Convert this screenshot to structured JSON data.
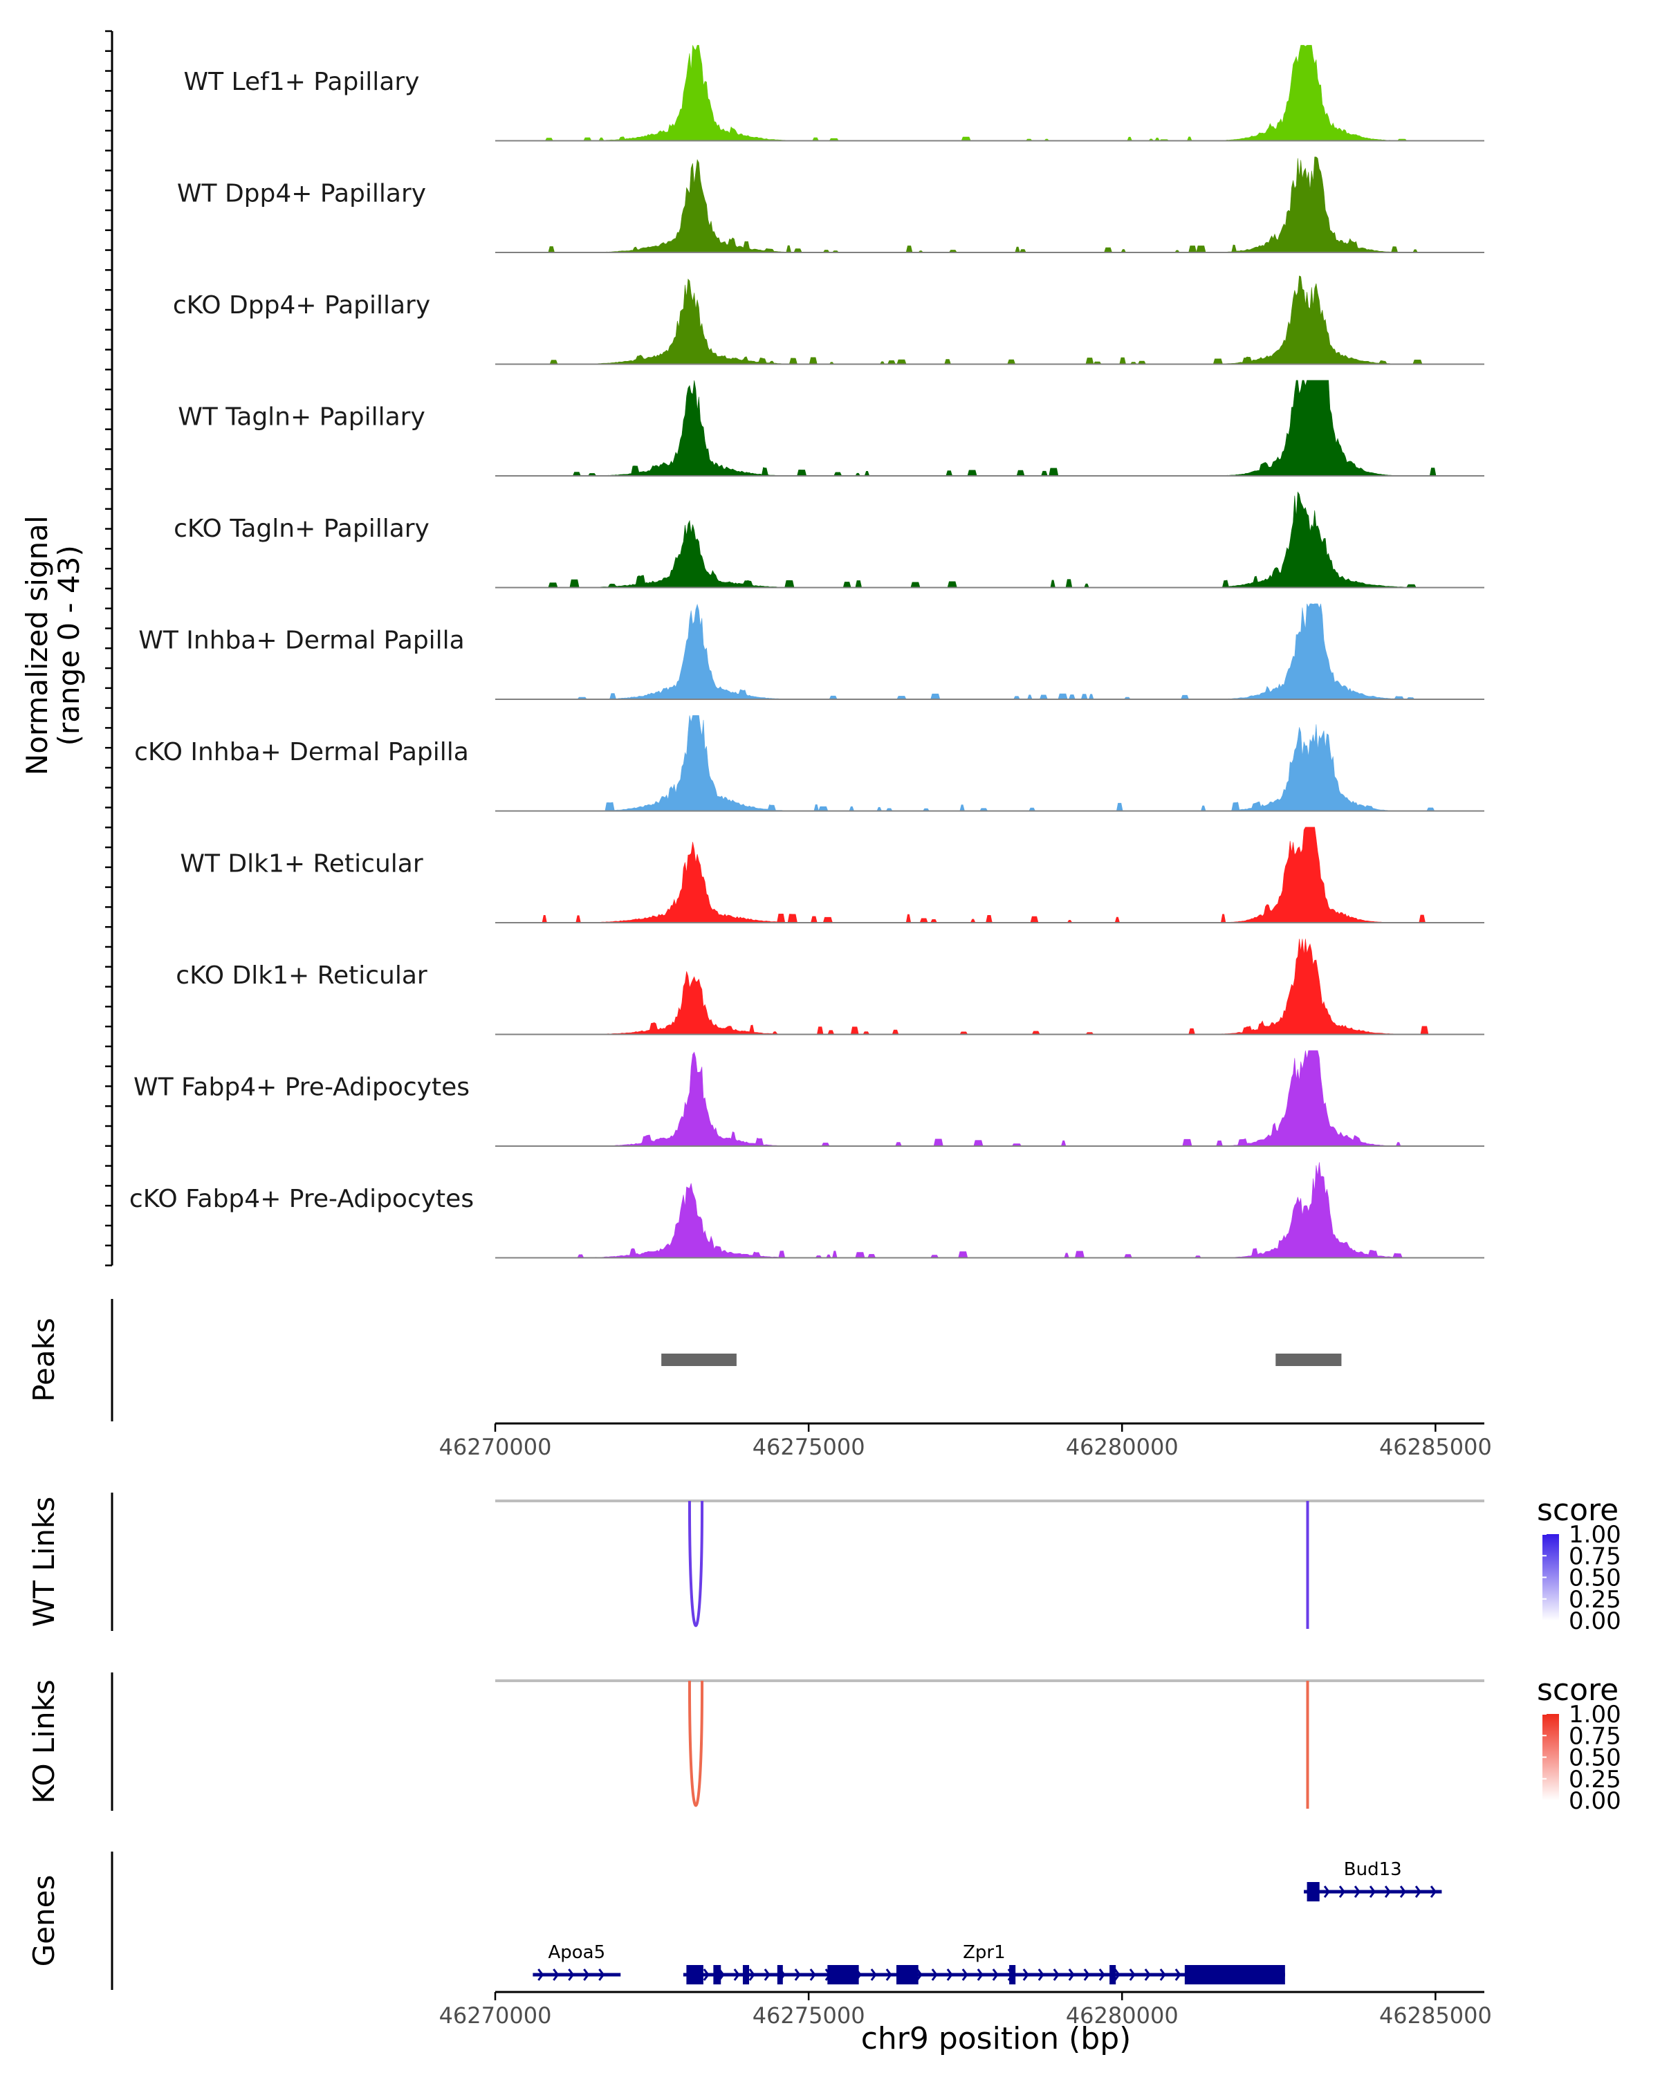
{
  "chart_data": {
    "type": "coverage",
    "xlabel": "chr9 position (bp)",
    "xlim": [
      46270000,
      46286000
    ],
    "x_ticks": [
      46270000,
      46275000,
      46280000,
      46285000
    ],
    "x_tick_labels": [
      "46270000",
      "46275000",
      "46280000",
      "46285000"
    ],
    "coverage": {
      "ylabel": "Normalized signal",
      "ylabel_range": "(range 0 - 43)",
      "ylim": [
        0,
        43
      ],
      "tracks": [
        {
          "name": "WT Lef1+ Papillary",
          "color": "#66CC00",
          "peaks": [
            [
              46273200,
              40,
              140
            ],
            [
              46282800,
              25,
              110
            ],
            [
              46283000,
              40,
              120
            ]
          ],
          "noise": 1.5
        },
        {
          "name": "WT Dpp4+ Papillary",
          "color": "#4C8C00",
          "peaks": [
            [
              46273200,
              36,
              140
            ],
            [
              46282800,
              30,
              110
            ],
            [
              46283100,
              32,
              120
            ]
          ],
          "noise": 2.5
        },
        {
          "name": "cKO Dpp4+ Papillary",
          "color": "#4C8C00",
          "peaks": [
            [
              46273100,
              32,
              150
            ],
            [
              46282800,
              28,
              110
            ],
            [
              46283100,
              26,
              120
            ]
          ],
          "noise": 2.5
        },
        {
          "name": "WT Tagln+ Papillary",
          "color": "#006400",
          "peaks": [
            [
              46273150,
              38,
              130
            ],
            [
              46282800,
              30,
              110
            ],
            [
              46283050,
              40,
              100
            ],
            [
              46283250,
              30,
              100
            ]
          ],
          "noise": 3.0
        },
        {
          "name": "cKO Tagln+ Papillary",
          "color": "#006400",
          "peaks": [
            [
              46273100,
              26,
              150
            ],
            [
              46282800,
              32,
              110
            ],
            [
              46283100,
              22,
              150
            ]
          ],
          "noise": 3.0
        },
        {
          "name": "WT Inhba+ Dermal Papilla",
          "color": "#5BA8E6",
          "peaks": [
            [
              46273200,
              38,
              130
            ],
            [
              46282850,
              22,
              110
            ],
            [
              46283100,
              42,
              120
            ]
          ],
          "noise": 2.0
        },
        {
          "name": "cKO Inhba+ Dermal Papilla",
          "color": "#5BA8E6",
          "peaks": [
            [
              46273200,
              50,
              130
            ],
            [
              46282800,
              26,
              110
            ],
            [
              46283100,
              25,
              110
            ],
            [
              46283300,
              18,
              90
            ]
          ],
          "noise": 3.0
        },
        {
          "name": "WT Dlk1+ Reticular",
          "color": "#FF2020",
          "peaks": [
            [
              46273150,
              30,
              150
            ],
            [
              46282700,
              28,
              90
            ],
            [
              46283000,
              44,
              110
            ]
          ],
          "noise": 3.0
        },
        {
          "name": "cKO Dlk1+ Reticular",
          "color": "#FF2020",
          "peaks": [
            [
              46273150,
              26,
              140
            ],
            [
              46282800,
              22,
              110
            ],
            [
              46283000,
              30,
              130
            ]
          ],
          "noise": 3.0
        },
        {
          "name": "WT Fabp4+ Pre-Adipocytes",
          "color": "#B23AEE",
          "peaks": [
            [
              46273200,
              36,
              130
            ],
            [
              46282750,
              24,
              100
            ],
            [
              46283050,
              50,
              110
            ]
          ],
          "noise": 3.0
        },
        {
          "name": "cKO Fabp4+ Pre-Adipocytes",
          "color": "#B23AEE",
          "peaks": [
            [
              46273100,
              28,
              150
            ],
            [
              46282800,
              18,
              100
            ],
            [
              46283150,
              38,
              120
            ]
          ],
          "noise": 2.5
        }
      ]
    },
    "peaks": {
      "label": "Peaks",
      "color": "#666666",
      "regions": [
        [
          46272650,
          46273850
        ],
        [
          46282450,
          46283500
        ]
      ]
    },
    "links": [
      {
        "label": "WT Links",
        "color": "#6A3DE8",
        "arcs": [
          [
            46273100,
            46273300
          ],
          [
            46282950,
            46282970
          ]
        ],
        "legend": {
          "title": "score",
          "ticks": [
            "1.00",
            "0.75",
            "0.50",
            "0.25",
            "0.00"
          ],
          "high": "#3319E6",
          "low": "#FFFFFF"
        }
      },
      {
        "label": "KO Links",
        "color": "#EE6A4F",
        "arcs": [
          [
            46273100,
            46273300
          ],
          [
            46282950,
            46282970
          ]
        ],
        "legend": {
          "title": "score",
          "ticks": [
            "1.00",
            "0.75",
            "0.50",
            "0.25",
            "0.00"
          ],
          "high": "#EE2A1A",
          "low": "#FFFFFF"
        }
      }
    ],
    "genes": {
      "label": "Genes",
      "color": "#00008B",
      "items": [
        {
          "name": "Apoa5",
          "start": 46270600,
          "end": 46272000,
          "row": 1,
          "exons": []
        },
        {
          "name": "Zpr1",
          "start": 46273000,
          "end": 46282600,
          "row": 1,
          "exons": [
            [
              46273050,
              46273320
            ],
            [
              46273480,
              46273600
            ],
            [
              46273950,
              46274050
            ],
            [
              46274500,
              46274580
            ],
            [
              46275300,
              46275800
            ],
            [
              46276400,
              46276750
            ],
            [
              46278200,
              46278300
            ],
            [
              46279800,
              46279900
            ],
            [
              46281000,
              46282600
            ]
          ]
        },
        {
          "name": "Bud13",
          "start": 46282900,
          "end": 46285100,
          "row": 0,
          "exons": [
            [
              46282950,
              46283150
            ]
          ]
        }
      ]
    }
  }
}
